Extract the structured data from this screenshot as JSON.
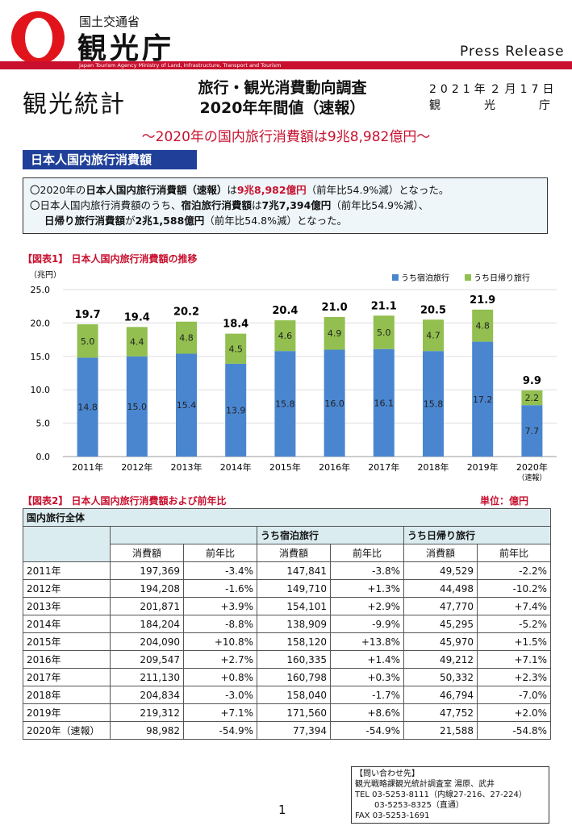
{
  "header": {
    "ministry": "国土交通省",
    "agency": "観光庁",
    "banner_text": "Japan Tourism Agency     Ministry of Land, Infrastructure, Transport and Tourism",
    "press_release": "Press Release",
    "stats_logo": "観光統計",
    "title_line1": "旅行・観光消費動向調査",
    "title_line2": "2020年年間値（速報）",
    "date": "2021年２月17日",
    "org_chars": [
      "観",
      "光",
      "庁"
    ]
  },
  "subtitle": "～2020年の国内旅行消費額は9兆8,982億円～",
  "section_title": "日本人国内旅行消費額",
  "summary": {
    "line1_a": "〇2020年の",
    "line1_b": "日本人国内旅行消費額（速報）",
    "line1_c": "は",
    "line1_d": "9兆8,982億円",
    "line1_e": "（前年比54.9%減）となった。",
    "line2_a": "〇日本人国内旅行消費額のうち、",
    "line2_b": "宿泊旅行消費額",
    "line2_c": "は",
    "line2_d": "7兆7,394億円",
    "line2_e": "（前年比54.9%減）、",
    "line3_b": "日帰り旅行消費額",
    "line3_c": "が",
    "line3_d": "2兆1,588億円",
    "line3_e": "（前年比54.8%減）となった。"
  },
  "fig1_title": "【図表1】 日本人国内旅行消費額の推移",
  "chart_data": {
    "type": "bar",
    "stacked": true,
    "ylabel": "（兆円）",
    "ylim": [
      0,
      25
    ],
    "yticks": [
      "0.0",
      "5.0",
      "10.0",
      "15.0",
      "20.0",
      "25.0"
    ],
    "categories": [
      "2011年",
      "2012年",
      "2013年",
      "2014年",
      "2015年",
      "2016年",
      "2017年",
      "2018年",
      "2019年",
      "2020年"
    ],
    "category_note": "（速報）",
    "series": [
      {
        "name": "うち宿泊旅行",
        "color": "#4a86d0",
        "values": [
          14.8,
          15.0,
          15.4,
          13.9,
          15.8,
          16.0,
          16.1,
          15.8,
          17.2,
          7.7
        ]
      },
      {
        "name": "うち日帰り旅行",
        "color": "#92bf4f",
        "values": [
          5.0,
          4.4,
          4.8,
          4.5,
          4.6,
          4.9,
          5.0,
          4.7,
          4.8,
          2.2
        ]
      }
    ],
    "totals": [
      19.7,
      19.4,
      20.2,
      18.4,
      20.4,
      21.0,
      21.1,
      20.5,
      21.9,
      9.9
    ],
    "legend_position": "top-right"
  },
  "fig2_title": "【図表2】 日本人国内旅行消費額および前年比",
  "unit_label": "単位：億円",
  "table": {
    "group_all": "国内旅行全体",
    "group_stay": "うち宿泊旅行",
    "group_day": "うち日帰り旅行",
    "col_amount": "消費額",
    "col_yoy": "前年比",
    "rows": [
      [
        "2011年",
        "197,369",
        "-3.4%",
        "147,841",
        "-3.8%",
        "49,529",
        "-2.2%"
      ],
      [
        "2012年",
        "194,208",
        "-1.6%",
        "149,710",
        "+1.3%",
        "44,498",
        "-10.2%"
      ],
      [
        "2013年",
        "201,871",
        "+3.9%",
        "154,101",
        "+2.9%",
        "47,770",
        "+7.4%"
      ],
      [
        "2014年",
        "184,204",
        "-8.8%",
        "138,909",
        "-9.9%",
        "45,295",
        "-5.2%"
      ],
      [
        "2015年",
        "204,090",
        "+10.8%",
        "158,120",
        "+13.8%",
        "45,970",
        "+1.5%"
      ],
      [
        "2016年",
        "209,547",
        "+2.7%",
        "160,335",
        "+1.4%",
        "49,212",
        "+7.1%"
      ],
      [
        "2017年",
        "211,130",
        "+0.8%",
        "160,798",
        "+0.3%",
        "50,332",
        "+2.3%"
      ],
      [
        "2018年",
        "204,834",
        "-3.0%",
        "158,040",
        "-1.7%",
        "46,794",
        "-7.0%"
      ],
      [
        "2019年",
        "219,312",
        "+7.1%",
        "171,560",
        "+8.6%",
        "47,752",
        "+2.0%"
      ],
      [
        "2020年（速報）",
        "98,982",
        "-54.9%",
        "77,394",
        "-54.9%",
        "21,588",
        "-54.8%"
      ]
    ]
  },
  "contact": {
    "line1": "【問い合わせ先】",
    "line2": "観光戦略課観光統計調査室 湯原、武井",
    "line3": "TEL  03-5253-8111（内線27-216、27-224）",
    "line4": "03-5253-8325（直通）",
    "line5": "FAX  03-5253-1691"
  },
  "page_number": "1"
}
